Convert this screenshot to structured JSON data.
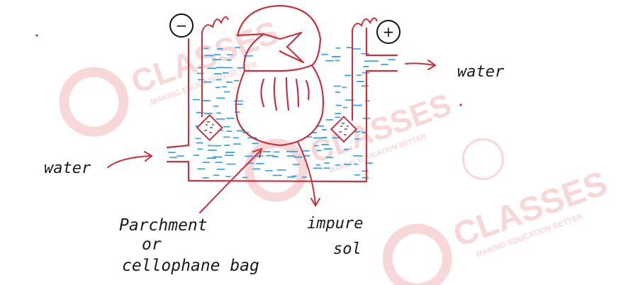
{
  "labels": {
    "minus": "−",
    "plus": "+",
    "water_out": "water",
    "water_in": "water",
    "bag_line1": "Parchment",
    "bag_line2": "or",
    "bag_line3": "cellophane bag",
    "impure_line1": "impure",
    "impure_line2": "sol"
  },
  "watermark": {
    "brand": "CLASSES",
    "tagline": "MAKING EDUCATION BETTER",
    "color": "#f2b8b8"
  },
  "colors": {
    "ink": "#c8323e",
    "water": "#3aa6e0",
    "text": "#1a1a1a"
  }
}
